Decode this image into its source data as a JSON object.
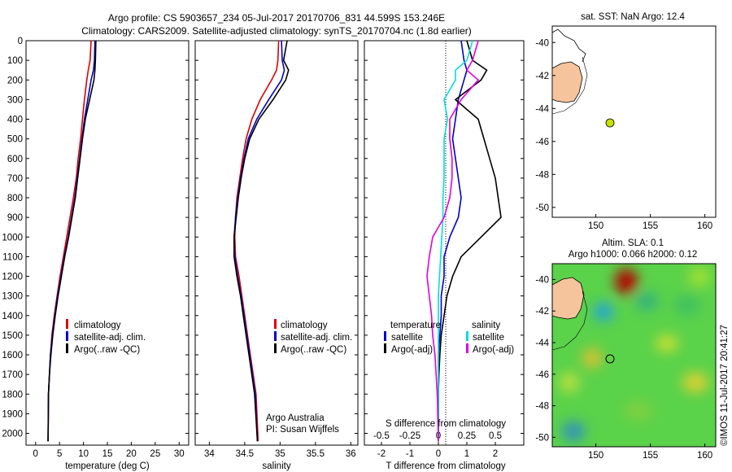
{
  "header": {
    "line1": "Argo profile: CS 5903657_234 05-Jul-2017 20170706_831 44.599S 153.246E",
    "line2": "Climatology: CARS2009. Satellite-adjusted climatology: synTS_20170704.nc (1.8d earlier)"
  },
  "colors": {
    "climatology": "#e00000",
    "satellite": "#0000cc",
    "argo": "#000000",
    "sal_sat": "#00e0e0",
    "sal_argo": "#e000e0",
    "land": "#f5c49c",
    "marker": "#c8e000"
  },
  "depth_ticks": [
    "0",
    "100",
    "200",
    "300",
    "400",
    "500",
    "600",
    "700",
    "800",
    "900",
    "1000",
    "1100",
    "1200",
    "1300",
    "1400",
    "1500",
    "1600",
    "1700",
    "1800",
    "1900",
    "2000"
  ],
  "chart_data": [
    {
      "type": "line",
      "name": "temperature",
      "xlabel": "temperature (deg C)",
      "xlim": [
        -2,
        32
      ],
      "ylim": [
        2060,
        0
      ],
      "xticks": [
        "0",
        "5",
        "10",
        "15",
        "20",
        "25",
        "30"
      ],
      "legend": [
        "climatology",
        "satellite-adj. clim.",
        "Argo(..raw -QC)"
      ],
      "series": [
        {
          "name": "climatology",
          "x": [
            11.6,
            11.4,
            11.0,
            10.7,
            10.2,
            9.8,
            9.4,
            8.9,
            8.5,
            7.9,
            7.2,
            6.5,
            5.8,
            5.1,
            4.5,
            3.9,
            3.4,
            3.1,
            2.9,
            2.7,
            2.6
          ],
          "y": [
            0,
            100,
            150,
            200,
            300,
            400,
            500,
            600,
            700,
            800,
            900,
            1000,
            1100,
            1200,
            1300,
            1400,
            1500,
            1600,
            1700,
            1800,
            2040
          ]
        },
        {
          "name": "satellite-adj. clim.",
          "x": [
            12.4,
            12.3,
            12.1,
            11.6,
            10.9,
            10.2,
            9.7,
            9.2,
            8.7,
            8.2,
            7.5,
            6.8,
            6.0,
            5.3,
            4.6,
            4.0,
            3.5,
            3.1,
            2.9,
            2.7,
            2.6
          ],
          "y": [
            0,
            100,
            150,
            200,
            300,
            400,
            500,
            600,
            700,
            800,
            900,
            1000,
            1100,
            1200,
            1300,
            1400,
            1500,
            1600,
            1700,
            1800,
            2040
          ]
        },
        {
          "name": "Argo(..raw -QC)",
          "x": [
            12.6,
            12.5,
            12.4,
            12.2,
            11.3,
            10.4,
            9.8,
            9.3,
            8.8,
            8.3,
            7.6,
            6.9,
            6.1,
            5.4,
            4.7,
            4.1,
            3.6,
            3.2,
            2.9,
            2.7,
            2.6
          ],
          "y": [
            0,
            100,
            150,
            200,
            300,
            400,
            500,
            600,
            700,
            800,
            900,
            1000,
            1100,
            1200,
            1300,
            1400,
            1500,
            1600,
            1700,
            1800,
            2040
          ]
        }
      ]
    },
    {
      "type": "line",
      "name": "salinity",
      "xlabel": "salinity",
      "xlim": [
        33.8,
        36.1
      ],
      "ylim": [
        2060,
        0
      ],
      "xticks": [
        "34",
        "34.5",
        "35",
        "35.5",
        "36"
      ],
      "legend": [
        "climatology",
        "satellite-adj. clim.",
        "Argo(..raw -QC)"
      ],
      "annotation": [
        "Argo Australia",
        "PI: Susan Wijffels"
      ],
      "series": [
        {
          "name": "climatology",
          "x": [
            34.98,
            34.97,
            34.95,
            34.88,
            34.72,
            34.6,
            34.52,
            34.47,
            34.43,
            34.39,
            34.37,
            34.36,
            34.37,
            34.42,
            34.46,
            34.5,
            34.54,
            34.58,
            34.62,
            34.66,
            34.69
          ],
          "y": [
            0,
            100,
            150,
            200,
            300,
            400,
            500,
            600,
            700,
            800,
            900,
            1000,
            1100,
            1200,
            1300,
            1400,
            1500,
            1600,
            1700,
            1800,
            2040
          ]
        },
        {
          "name": "satellite-adj. clim.",
          "x": [
            35.02,
            35.03,
            35.06,
            35.02,
            34.84,
            34.67,
            34.55,
            34.49,
            34.44,
            34.4,
            34.37,
            34.35,
            34.36,
            34.4,
            34.45,
            34.49,
            34.53,
            34.57,
            34.61,
            34.65,
            34.68
          ],
          "y": [
            0,
            100,
            150,
            200,
            300,
            400,
            500,
            600,
            700,
            800,
            900,
            1000,
            1100,
            1200,
            1300,
            1400,
            1500,
            1600,
            1700,
            1800,
            2040
          ]
        },
        {
          "name": "Argo(..raw -QC)",
          "x": [
            35.1,
            35.05,
            35.12,
            35.08,
            34.9,
            34.7,
            34.57,
            34.5,
            34.45,
            34.41,
            34.38,
            34.35,
            34.35,
            34.39,
            34.44,
            34.48,
            34.52,
            34.56,
            34.6,
            34.64,
            34.68
          ],
          "y": [
            0,
            100,
            150,
            200,
            300,
            400,
            500,
            600,
            700,
            800,
            900,
            1000,
            1100,
            1200,
            1300,
            1400,
            1500,
            1600,
            1700,
            1800,
            2040
          ]
        }
      ]
    },
    {
      "type": "line",
      "name": "difference",
      "xlabel": "T difference from climatology",
      "xlabel_top": "S difference from climatology",
      "xlim": [
        -2.6,
        3.0
      ],
      "ylim": [
        2060,
        0
      ],
      "xticks": [
        "-2",
        "-1",
        "0",
        "1",
        "2"
      ],
      "xticks_top": [
        "-0.5",
        "-0.25",
        "0",
        "0.25",
        "0.5"
      ],
      "legend_titles": [
        "temperature",
        "salinity"
      ],
      "legend": [
        "satellite",
        "Argo(-adj)",
        "satellite",
        "Argo(-adj)"
      ],
      "series": [
        {
          "name": "temperature satellite",
          "x": [
            0.8,
            0.9,
            1.0,
            0.9,
            0.7,
            0.6,
            0.5,
            0.6,
            0.7,
            0.8,
            0.7,
            0.4,
            0.2,
            0.2,
            0.1,
            0.1,
            0.05,
            0.0,
            0.0,
            0.0,
            0.0
          ],
          "y": [
            0,
            100,
            150,
            200,
            300,
            400,
            500,
            600,
            700,
            800,
            900,
            1000,
            1100,
            1200,
            1300,
            1400,
            1500,
            1600,
            1700,
            1800,
            2040
          ]
        },
        {
          "name": "temperature Argo(-adj)",
          "x": [
            1.0,
            1.2,
            1.7,
            1.5,
            0.6,
            1.4,
            1.6,
            1.8,
            2.0,
            2.1,
            2.2,
            1.5,
            0.8,
            0.5,
            0.3,
            0.2,
            0.1,
            0.05,
            0.02,
            0.0,
            0.0
          ],
          "y": [
            0,
            100,
            150,
            200,
            300,
            400,
            500,
            600,
            700,
            800,
            900,
            1000,
            1100,
            1200,
            1300,
            1400,
            1500,
            1600,
            1700,
            1800,
            2040
          ]
        },
        {
          "name": "salinity satellite",
          "x": [
            0.3,
            0.25,
            0.15,
            0.15,
            0.05,
            0.08,
            0.05,
            0.05,
            0.05,
            0.04,
            0.04,
            0.03,
            0.02,
            0.01,
            0.0,
            0.0,
            0.0,
            0.0,
            0.0,
            0.0,
            0.0
          ],
          "y": [
            0,
            100,
            150,
            200,
            300,
            400,
            500,
            600,
            700,
            800,
            900,
            1000,
            1100,
            1200,
            1300,
            1400,
            1500,
            1600,
            1700,
            1800,
            2040
          ]
        },
        {
          "name": "salinity Argo(-adj)",
          "x": [
            0.35,
            0.3,
            0.25,
            0.35,
            0.2,
            0.1,
            0.1,
            0.12,
            0.12,
            0.1,
            0.05,
            -0.05,
            -0.08,
            -0.1,
            -0.08,
            -0.06,
            -0.05,
            -0.03,
            -0.02,
            -0.01,
            0.0
          ],
          "y": [
            0,
            100,
            150,
            200,
            300,
            400,
            500,
            600,
            700,
            800,
            900,
            1000,
            1100,
            1200,
            1300,
            1400,
            1500,
            1600,
            1700,
            1800,
            2040
          ]
        }
      ]
    }
  ],
  "map_sst": {
    "title": "sat. SST: NaN Argo: 12.4",
    "xticks": [
      "150",
      "155",
      "160"
    ],
    "yticks": [
      "-40",
      "-42",
      "-44",
      "-46",
      "-48",
      "-50"
    ]
  },
  "map_sla": {
    "title1": "Altim. SLA: 0.1",
    "title2": "Argo h1000: 0.066 h2000: 0.12",
    "xticks": [
      "150",
      "155",
      "160"
    ],
    "yticks": [
      "-40",
      "-42",
      "-44",
      "-46",
      "-48",
      "-50"
    ],
    "stamp": "©IMOS 11-Jul-2017 20:41:27"
  }
}
